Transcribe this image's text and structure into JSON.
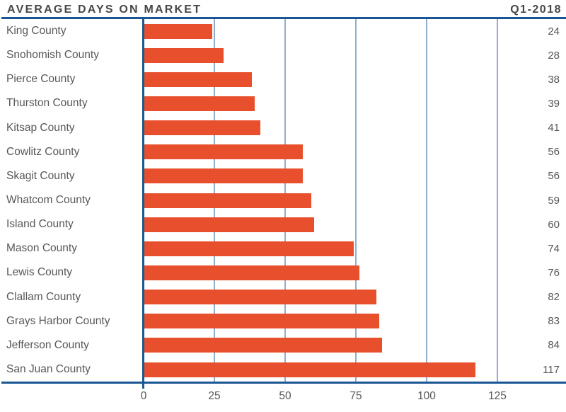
{
  "header": {
    "title": "AVERAGE DAYS ON MARKET",
    "period": "Q1-2018"
  },
  "chart_data": {
    "type": "bar",
    "orientation": "horizontal",
    "title": "AVERAGE DAYS ON MARKET",
    "subtitle": "Q1-2018",
    "categories": [
      "King County",
      "Snohomish County",
      "Pierce County",
      "Thurston County",
      "Kitsap County",
      "Cowlitz County",
      "Skagit County",
      "Whatcom County",
      "Island County",
      "Mason County",
      "Lewis County",
      "Clallam County",
      "Grays Harbor County",
      "Jefferson County",
      "San Juan County"
    ],
    "values": [
      24,
      28,
      38,
      39,
      41,
      56,
      56,
      59,
      60,
      74,
      76,
      82,
      83,
      84,
      117
    ],
    "xlabel": "",
    "ylabel": "",
    "x_ticks": [
      0,
      25,
      50,
      75,
      100,
      125
    ],
    "xlim": [
      0,
      148
    ],
    "grid": true,
    "legend": false,
    "value_labels_shown": true
  },
  "colors": {
    "bar": "#E8502D",
    "axis_line": "#1B5694",
    "gridline": "#8FAECE",
    "title_text": "#474747",
    "label_text": "#575757",
    "background": "#FFFFFF"
  }
}
